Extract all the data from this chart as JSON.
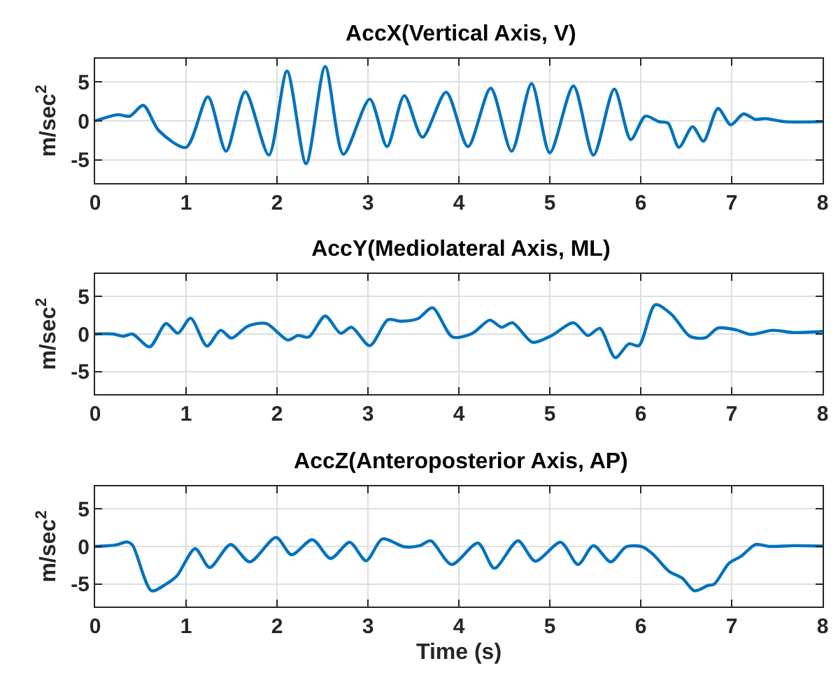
{
  "chart_data": [
    {
      "type": "line",
      "title": "AccX(Vertical Axis, V)",
      "ylabel": "m/sec$^{2}$",
      "xlim": [
        0,
        8
      ],
      "ylim": [
        -8,
        8
      ],
      "xticks": [
        0,
        1,
        2,
        3,
        4,
        5,
        6,
        7,
        8
      ],
      "yticks": [
        -5,
        0,
        5
      ],
      "grid": true,
      "line_style": "solid",
      "marker": "none",
      "x": [
        0,
        0.25,
        0.38,
        0.53,
        0.7,
        1.0,
        1.24,
        1.44,
        1.65,
        1.91,
        2.11,
        2.32,
        2.53,
        2.73,
        3.02,
        3.21,
        3.4,
        3.6,
        3.86,
        4.1,
        4.35,
        4.58,
        4.8,
        5.0,
        5.26,
        5.48,
        5.71,
        5.89,
        6.05,
        6.2,
        6.3,
        6.42,
        6.57,
        6.69,
        6.85,
        6.99,
        7.13,
        7.26,
        7.37,
        7.58,
        8
      ],
      "series": [
        {
          "color": "#0072bd",
          "values": [
            0,
            0.8,
            0.6,
            2,
            -1.25,
            -3.4,
            3.1,
            -3.9,
            3.75,
            -4.4,
            6.4,
            -5.5,
            7.0,
            -4.3,
            2.8,
            -3.3,
            3.25,
            -2.1,
            3.7,
            -3.3,
            4.2,
            -3.9,
            4.8,
            -4.1,
            4.5,
            -4.4,
            4.1,
            -2.4,
            0.6,
            -0.1,
            -0.3,
            -3.4,
            -0.75,
            -2.6,
            1.6,
            -0.5,
            0.9,
            0.2,
            0.3,
            -0.1,
            -0.1
          ]
        }
      ]
    },
    {
      "type": "line",
      "title": "AccY(Mediolateral Axis, ML)",
      "ylabel": "m/sec$^{2}$",
      "xlim": [
        0,
        8
      ],
      "ylim": [
        -8,
        8
      ],
      "xticks": [
        0,
        1,
        2,
        3,
        4,
        5,
        6,
        7,
        8
      ],
      "yticks": [
        -5,
        0,
        5
      ],
      "grid": true,
      "line_style": "solid",
      "marker": "none",
      "x": [
        0,
        0.2,
        0.31,
        0.41,
        0.6,
        0.78,
        0.91,
        1.05,
        1.23,
        1.38,
        1.5,
        1.68,
        1.88,
        2.12,
        2.23,
        2.35,
        2.53,
        2.7,
        2.82,
        3.02,
        3.22,
        3.36,
        3.55,
        3.71,
        3.93,
        4.15,
        4.34,
        4.47,
        4.59,
        4.81,
        5.02,
        5.26,
        5.42,
        5.55,
        5.72,
        5.87,
        5.98,
        6.16,
        6.34,
        6.54,
        6.71,
        6.85,
        7.05,
        7.21,
        7.45,
        7.68,
        8
      ],
      "series": [
        {
          "color": "#0072bd",
          "values": [
            0,
            0,
            -0.3,
            0,
            -1.7,
            1.4,
            0.1,
            2.1,
            -1.6,
            0.5,
            -0.55,
            1.05,
            1.4,
            -0.8,
            -0.2,
            -0.4,
            2.4,
            0.1,
            0.9,
            -1.55,
            1.9,
            1.7,
            2.05,
            3.5,
            -0.4,
            0.1,
            1.85,
            0.9,
            1.5,
            -1.1,
            -0.2,
            1.5,
            -0.2,
            0.75,
            -3.15,
            -1.3,
            -1.55,
            3.9,
            2.6,
            -0.3,
            -0.5,
            0.8,
            0.55,
            -0.05,
            0.5,
            0.2,
            0.35
          ]
        }
      ]
    },
    {
      "type": "line",
      "title": "AccZ(Anteroposterior Axis, AP)",
      "ylabel": "m/sec$^{2}$",
      "xlabel": "Time (s)",
      "xlim": [
        0,
        8
      ],
      "ylim": [
        -8,
        8
      ],
      "xticks": [
        0,
        1,
        2,
        3,
        4,
        5,
        6,
        7,
        8
      ],
      "yticks": [
        -5,
        0,
        5
      ],
      "grid": true,
      "line_style": "solid",
      "marker": "none",
      "x": [
        0,
        0.23,
        0.35,
        0.41,
        0.62,
        0.78,
        0.9,
        1.1,
        1.26,
        1.49,
        1.7,
        1.99,
        2.16,
        2.39,
        2.59,
        2.8,
        2.98,
        3.16,
        3.4,
        3.57,
        3.69,
        3.92,
        4.21,
        4.39,
        4.65,
        4.84,
        5.12,
        5.31,
        5.48,
        5.67,
        5.84,
        6.02,
        6.14,
        6.31,
        6.46,
        6.59,
        6.74,
        6.81,
        6.97,
        7.11,
        7.26,
        7.42,
        7.68,
        8
      ],
      "series": [
        {
          "color": "#0072bd",
          "values": [
            0,
            0.2,
            0.6,
            0.2,
            -5.9,
            -5,
            -3.9,
            -0.3,
            -2.8,
            0.25,
            -2.05,
            1.2,
            -1.1,
            0.9,
            -1.6,
            0.55,
            -1.9,
            1.0,
            -0.05,
            0.1,
            0.75,
            -2.4,
            0.45,
            -2.9,
            0.75,
            -1.95,
            0.55,
            -2.4,
            0.1,
            -2.05,
            -0.05,
            -0.05,
            -1.1,
            -3.3,
            -4.25,
            -5.9,
            -5.2,
            -5,
            -2.25,
            -1.25,
            0.25,
            0,
            0.1,
            0.05
          ]
        }
      ]
    }
  ]
}
